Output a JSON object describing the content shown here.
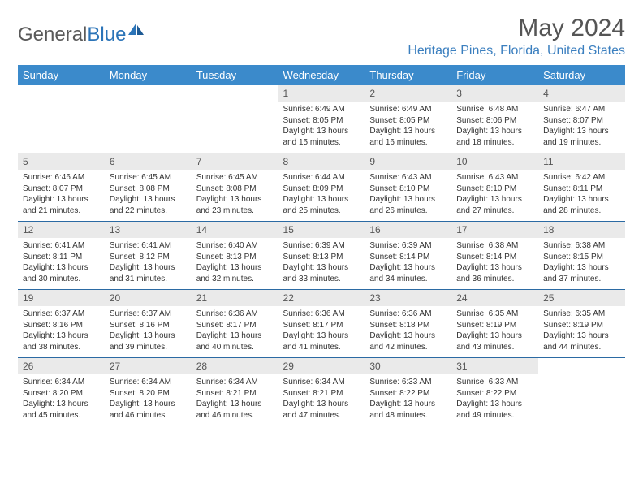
{
  "brand": {
    "part1": "General",
    "part2": "Blue"
  },
  "title": "May 2024",
  "location": "Heritage Pines, Florida, United States",
  "colors": {
    "header_bg": "#3b8acb",
    "header_text": "#ffffff",
    "daynum_bg": "#eaeaea",
    "border": "#2b6aa3",
    "brand_blue": "#2b74b8",
    "location_color": "#3b7fbf",
    "title_color": "#555555"
  },
  "weekdays": [
    "Sunday",
    "Monday",
    "Tuesday",
    "Wednesday",
    "Thursday",
    "Friday",
    "Saturday"
  ],
  "weeks": [
    [
      {
        "n": "",
        "sr": "",
        "ss": "",
        "dh": "",
        "dm": ""
      },
      {
        "n": "",
        "sr": "",
        "ss": "",
        "dh": "",
        "dm": ""
      },
      {
        "n": "",
        "sr": "",
        "ss": "",
        "dh": "",
        "dm": ""
      },
      {
        "n": "1",
        "sr": "6:49 AM",
        "ss": "8:05 PM",
        "dh": "13",
        "dm": "15"
      },
      {
        "n": "2",
        "sr": "6:49 AM",
        "ss": "8:05 PM",
        "dh": "13",
        "dm": "16"
      },
      {
        "n": "3",
        "sr": "6:48 AM",
        "ss": "8:06 PM",
        "dh": "13",
        "dm": "18"
      },
      {
        "n": "4",
        "sr": "6:47 AM",
        "ss": "8:07 PM",
        "dh": "13",
        "dm": "19"
      }
    ],
    [
      {
        "n": "5",
        "sr": "6:46 AM",
        "ss": "8:07 PM",
        "dh": "13",
        "dm": "21"
      },
      {
        "n": "6",
        "sr": "6:45 AM",
        "ss": "8:08 PM",
        "dh": "13",
        "dm": "22"
      },
      {
        "n": "7",
        "sr": "6:45 AM",
        "ss": "8:08 PM",
        "dh": "13",
        "dm": "23"
      },
      {
        "n": "8",
        "sr": "6:44 AM",
        "ss": "8:09 PM",
        "dh": "13",
        "dm": "25"
      },
      {
        "n": "9",
        "sr": "6:43 AM",
        "ss": "8:10 PM",
        "dh": "13",
        "dm": "26"
      },
      {
        "n": "10",
        "sr": "6:43 AM",
        "ss": "8:10 PM",
        "dh": "13",
        "dm": "27"
      },
      {
        "n": "11",
        "sr": "6:42 AM",
        "ss": "8:11 PM",
        "dh": "13",
        "dm": "28"
      }
    ],
    [
      {
        "n": "12",
        "sr": "6:41 AM",
        "ss": "8:11 PM",
        "dh": "13",
        "dm": "30"
      },
      {
        "n": "13",
        "sr": "6:41 AM",
        "ss": "8:12 PM",
        "dh": "13",
        "dm": "31"
      },
      {
        "n": "14",
        "sr": "6:40 AM",
        "ss": "8:13 PM",
        "dh": "13",
        "dm": "32"
      },
      {
        "n": "15",
        "sr": "6:39 AM",
        "ss": "8:13 PM",
        "dh": "13",
        "dm": "33"
      },
      {
        "n": "16",
        "sr": "6:39 AM",
        "ss": "8:14 PM",
        "dh": "13",
        "dm": "34"
      },
      {
        "n": "17",
        "sr": "6:38 AM",
        "ss": "8:14 PM",
        "dh": "13",
        "dm": "36"
      },
      {
        "n": "18",
        "sr": "6:38 AM",
        "ss": "8:15 PM",
        "dh": "13",
        "dm": "37"
      }
    ],
    [
      {
        "n": "19",
        "sr": "6:37 AM",
        "ss": "8:16 PM",
        "dh": "13",
        "dm": "38"
      },
      {
        "n": "20",
        "sr": "6:37 AM",
        "ss": "8:16 PM",
        "dh": "13",
        "dm": "39"
      },
      {
        "n": "21",
        "sr": "6:36 AM",
        "ss": "8:17 PM",
        "dh": "13",
        "dm": "40"
      },
      {
        "n": "22",
        "sr": "6:36 AM",
        "ss": "8:17 PM",
        "dh": "13",
        "dm": "41"
      },
      {
        "n": "23",
        "sr": "6:36 AM",
        "ss": "8:18 PM",
        "dh": "13",
        "dm": "42"
      },
      {
        "n": "24",
        "sr": "6:35 AM",
        "ss": "8:19 PM",
        "dh": "13",
        "dm": "43"
      },
      {
        "n": "25",
        "sr": "6:35 AM",
        "ss": "8:19 PM",
        "dh": "13",
        "dm": "44"
      }
    ],
    [
      {
        "n": "26",
        "sr": "6:34 AM",
        "ss": "8:20 PM",
        "dh": "13",
        "dm": "45"
      },
      {
        "n": "27",
        "sr": "6:34 AM",
        "ss": "8:20 PM",
        "dh": "13",
        "dm": "46"
      },
      {
        "n": "28",
        "sr": "6:34 AM",
        "ss": "8:21 PM",
        "dh": "13",
        "dm": "46"
      },
      {
        "n": "29",
        "sr": "6:34 AM",
        "ss": "8:21 PM",
        "dh": "13",
        "dm": "47"
      },
      {
        "n": "30",
        "sr": "6:33 AM",
        "ss": "8:22 PM",
        "dh": "13",
        "dm": "48"
      },
      {
        "n": "31",
        "sr": "6:33 AM",
        "ss": "8:22 PM",
        "dh": "13",
        "dm": "49"
      },
      {
        "n": "",
        "sr": "",
        "ss": "",
        "dh": "",
        "dm": ""
      }
    ]
  ]
}
